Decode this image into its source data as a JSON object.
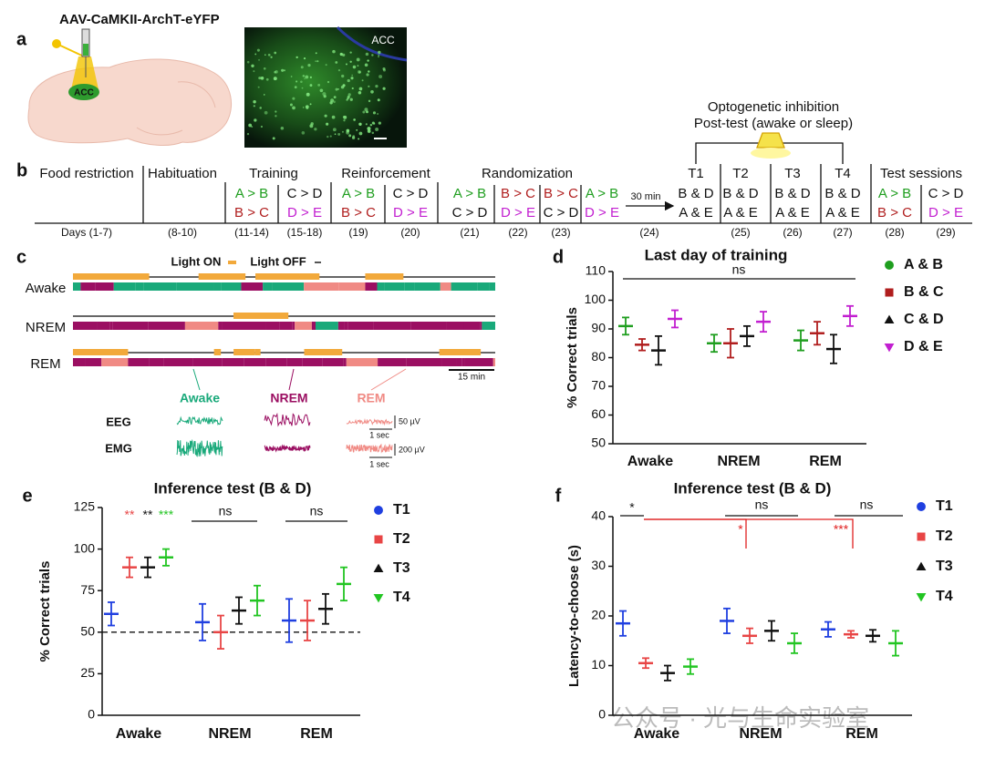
{
  "panel_a": {
    "letter": "a",
    "virus": "AAV-CaMKII-ArchT-eYFP",
    "region_label": "ACC",
    "image_label": "ACC"
  },
  "panel_b": {
    "letter": "b",
    "header": [
      "Optogenetic inhibition",
      "Post-test (awake or sleep)"
    ],
    "phases": [
      "Food restriction",
      "Habituation",
      "Training",
      "Reinforcement",
      "Randomization",
      "T1",
      "T2",
      "T3",
      "T4",
      "Test sessions"
    ],
    "delay": "30 min",
    "pair_colors": {
      "A > B": "#1f9e1f",
      "B > C": "#b01e1e",
      "C > D": "#111111",
      "D > E": "#c21fd0",
      "B & D": "#111111",
      "A & E": "#111111"
    },
    "cells": [
      {
        "days": "Days (1-7)"
      },
      {
        "days": "(8-10)"
      },
      {
        "top": "A > B",
        "bottom": "B > C",
        "days": "(11-14)"
      },
      {
        "top": "C > D",
        "bottom": "D > E",
        "days": "(15-18)"
      },
      {
        "top": "A > B",
        "bottom": "B > C",
        "days": "(19)"
      },
      {
        "top": "C > D",
        "bottom": "D > E",
        "days": "(20)"
      },
      {
        "top": "A > B",
        "bottom": "C > D",
        "days": "(21)"
      },
      {
        "top": "B > C",
        "bottom": "D > E",
        "days": "(22)"
      },
      {
        "top": "B > C",
        "bottom": "C > D",
        "days": "(23)"
      },
      {
        "top": "B & D",
        "bottom": "A & E",
        "days": "(24)"
      },
      {
        "top": "B & D",
        "bottom": "A & E",
        "days": "(25)"
      },
      {
        "top": "B & D",
        "bottom": "A & E",
        "days": "(26)"
      },
      {
        "top": "B & D",
        "bottom": "A & E",
        "days": "(27)"
      },
      {
        "top": "A > B",
        "bottom": "B > C",
        "days": "(28)"
      },
      {
        "top": "C > D",
        "bottom": "D > E",
        "days": "(29)"
      }
    ],
    "extra_pair": {
      "top": "A > B",
      "bottom": "D > E"
    }
  },
  "panel_c": {
    "letter": "c",
    "light_on": "Light ON",
    "light_off": "Light OFF",
    "rows": [
      "Awake",
      "NREM",
      "REM"
    ],
    "scale_bar": "15 min",
    "states": [
      "Awake",
      "NREM",
      "REM"
    ],
    "state_colors": [
      "#19a97a",
      "#9b0f62",
      "#f08a84"
    ],
    "signals": [
      "EEG",
      "EMG"
    ],
    "eeg_scale": [
      "50 µV",
      "1 sec"
    ],
    "emg_scale": [
      "200 µV",
      "1 sec"
    ]
  },
  "chart_data": [
    {
      "type": "dot",
      "letter": "d",
      "title": "Last day of training",
      "ylabel": "% Correct trials",
      "categories": [
        "Awake",
        "NREM",
        "REM"
      ],
      "series": [
        {
          "name": "A & B",
          "color": "#1f9e1f",
          "marker": "circle",
          "values": [
            91,
            85,
            86
          ],
          "errors": [
            3,
            3,
            3.5
          ]
        },
        {
          "name": "B & C",
          "color": "#b01e1e",
          "marker": "square",
          "values": [
            84.5,
            85,
            88.5
          ],
          "errors": [
            2,
            5,
            4
          ]
        },
        {
          "name": "C & D",
          "color": "#111111",
          "marker": "triangle",
          "values": [
            82.5,
            87.5,
            83
          ],
          "errors": [
            5,
            3.5,
            5
          ]
        },
        {
          "name": "D & E",
          "color": "#c21fd0",
          "marker": "triangle-down",
          "values": [
            93.5,
            92.5,
            94.5
          ],
          "errors": [
            3,
            3.5,
            3.5
          ]
        }
      ],
      "ylim": [
        50,
        110
      ],
      "yticks": [
        50,
        60,
        70,
        80,
        90,
        100,
        110
      ],
      "significance": [
        {
          "label": "ns",
          "color": "#111111"
        }
      ]
    },
    {
      "type": "dot",
      "letter": "e",
      "title": "Inference test (B & D)",
      "ylabel": "% Correct trials",
      "categories": [
        "Awake",
        "NREM",
        "REM"
      ],
      "series": [
        {
          "name": "T1",
          "color": "#1f3fe0",
          "marker": "circle",
          "values": [
            61,
            56,
            57
          ],
          "errors": [
            7,
            11,
            13
          ]
        },
        {
          "name": "T2",
          "color": "#e84545",
          "marker": "square",
          "values": [
            89,
            50,
            57
          ],
          "errors": [
            6,
            10,
            12
          ]
        },
        {
          "name": "T3",
          "color": "#111111",
          "marker": "triangle",
          "values": [
            89,
            63,
            64
          ],
          "errors": [
            6,
            8,
            9
          ]
        },
        {
          "name": "T4",
          "color": "#22c522",
          "marker": "triangle-down",
          "values": [
            95,
            69,
            79
          ],
          "errors": [
            5,
            9,
            10
          ]
        }
      ],
      "ylim": [
        0,
        125
      ],
      "yticks": [
        0,
        25,
        50,
        75,
        100,
        125
      ],
      "reference_line": 50,
      "significance": [
        {
          "label": "**",
          "color": "#e84545"
        },
        {
          "label": "**",
          "color": "#111111"
        },
        {
          "label": "***",
          "color": "#22c522"
        },
        {
          "label": "ns",
          "color": "#111111"
        },
        {
          "label": "ns",
          "color": "#111111"
        }
      ]
    },
    {
      "type": "dot",
      "letter": "f",
      "title": "Inference test (B & D)",
      "ylabel": "Latency-to-choose (s)",
      "categories": [
        "Awake",
        "NREM",
        "REM"
      ],
      "series": [
        {
          "name": "T1",
          "color": "#1f3fe0",
          "marker": "circle",
          "values": [
            18.5,
            19,
            17.3
          ],
          "errors": [
            2.5,
            2.5,
            1.5
          ]
        },
        {
          "name": "T2",
          "color": "#e84545",
          "marker": "square",
          "values": [
            10.5,
            16,
            16.3
          ],
          "errors": [
            1,
            1.5,
            0.7
          ]
        },
        {
          "name": "T3",
          "color": "#111111",
          "marker": "triangle",
          "values": [
            8.5,
            17,
            16
          ],
          "errors": [
            1.5,
            2,
            1.2
          ]
        },
        {
          "name": "T4",
          "color": "#22c522",
          "marker": "triangle-down",
          "values": [
            9.8,
            14.5,
            14.5
          ],
          "errors": [
            1.5,
            2,
            2.5
          ]
        }
      ],
      "ylim": [
        0,
        40
      ],
      "yticks": [
        0,
        10,
        20,
        30,
        40
      ],
      "significance": [
        {
          "label": "*",
          "color": "#111111"
        },
        {
          "label": "ns",
          "color": "#111111"
        },
        {
          "label": "*",
          "color": "#e02020"
        },
        {
          "label": "***",
          "color": "#e02020"
        },
        {
          "label": "ns",
          "color": "#111111"
        }
      ]
    }
  ],
  "watermark": "公众号 · 光与生命实验室"
}
